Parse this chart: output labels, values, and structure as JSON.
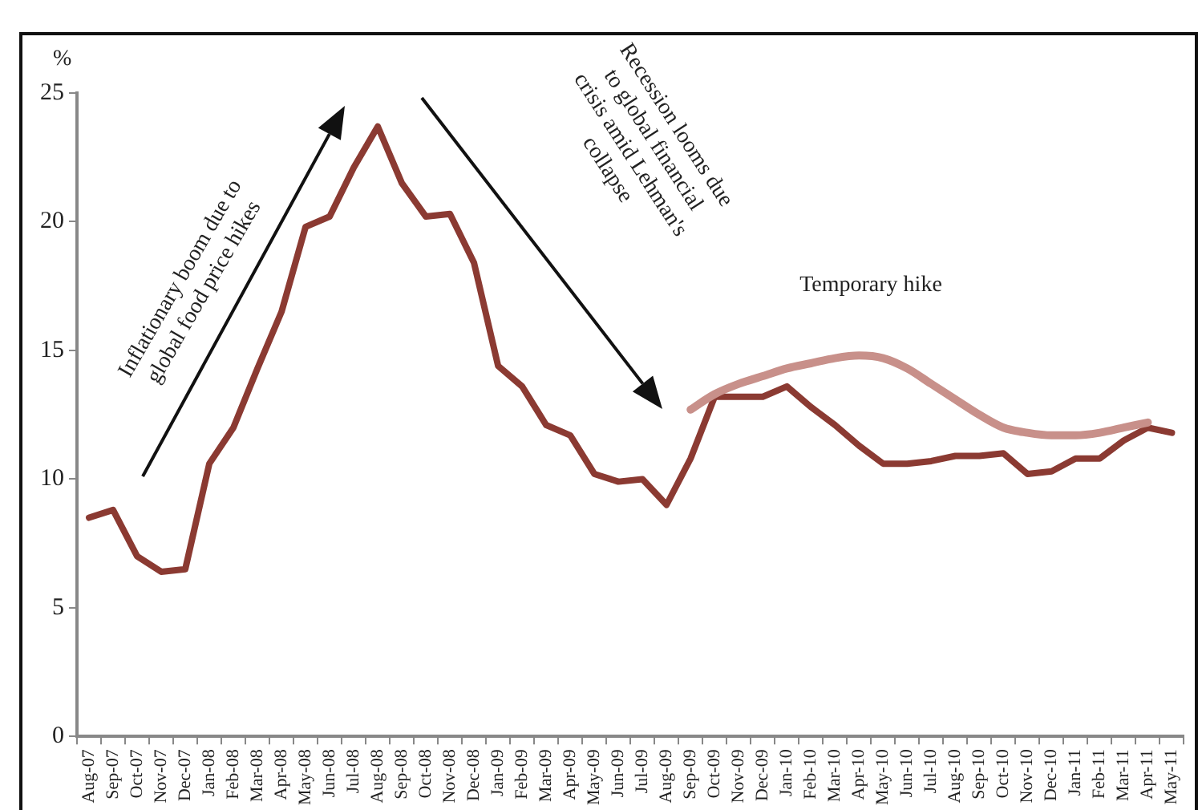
{
  "chart_data": {
    "type": "line",
    "ylabel": "%",
    "categories": [
      "Aug-07",
      "Sep-07",
      "Oct-07",
      "Nov-07",
      "Dec-07",
      "Jan-08",
      "Feb-08",
      "Mar-08",
      "Apr-08",
      "May-08",
      "Jun-08",
      "Jul-08",
      "Aug-08",
      "Sep-08",
      "Oct-08",
      "Nov-08",
      "Dec-08",
      "Jan-09",
      "Feb-09",
      "Mar-09",
      "Apr-09",
      "May-09",
      "Jun-09",
      "Jul-09",
      "Aug-09",
      "Sep-09",
      "Oct-09",
      "Nov-09",
      "Dec-09",
      "Jan-10",
      "Feb-10",
      "Mar-10",
      "Apr-10",
      "May-10",
      "Jun-10",
      "Jul-10",
      "Aug-10",
      "Sep-10",
      "Oct-10",
      "Nov-10",
      "Dec-10",
      "Jan-11",
      "Feb-11",
      "Mar-11",
      "Apr-11",
      "May-11"
    ],
    "series": [
      {
        "color": "#8b3a32",
        "values": [
          8.5,
          8.8,
          7.0,
          6.4,
          6.5,
          10.6,
          12.0,
          14.3,
          16.5,
          19.8,
          20.2,
          22.1,
          23.7,
          21.5,
          20.2,
          20.3,
          18.4,
          14.4,
          13.6,
          12.1,
          11.7,
          10.2,
          9.9,
          10.0,
          9.0,
          10.8,
          13.2,
          13.2,
          13.2,
          13.6,
          12.8,
          12.1,
          11.3,
          10.6,
          10.6,
          10.7,
          10.9,
          10.9,
          11.0,
          10.2,
          10.3,
          10.8,
          10.8,
          11.5,
          12.0,
          11.8
        ]
      },
      {
        "color": "#c8908a",
        "values": [
          null,
          null,
          null,
          null,
          null,
          null,
          null,
          null,
          null,
          null,
          null,
          null,
          null,
          null,
          null,
          null,
          null,
          null,
          null,
          null,
          null,
          null,
          null,
          null,
          null,
          12.7,
          13.3,
          13.7,
          14.0,
          14.3,
          14.5,
          14.7,
          14.8,
          14.7,
          14.3,
          13.7,
          13.1,
          12.5,
          12.0,
          11.8,
          11.7,
          11.7,
          11.8,
          12.0,
          12.2,
          null
        ]
      }
    ],
    "ylim": [
      0,
      25
    ],
    "yticks": [
      0,
      5,
      10,
      15,
      20,
      25
    ],
    "annotations": [
      "Inflationary boom due to\nglobal food price hikes",
      "Recession looms due\nto global financial\ncrisis amid Lehman's\ncollapse",
      "Temporary hike"
    ]
  }
}
